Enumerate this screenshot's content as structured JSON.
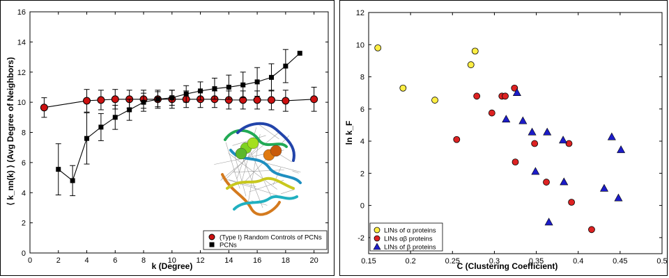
{
  "chart_data": [
    {
      "type": "line",
      "xlabel": "k (Degree)",
      "ylabel": "⟨ k_nn(k) ⟩ (Avg Degree of Neighbors)",
      "xlim": [
        0,
        21
      ],
      "ylim": [
        0,
        16
      ],
      "xticks": [
        0,
        2,
        4,
        6,
        8,
        10,
        12,
        14,
        16,
        18,
        20
      ],
      "yticks": [
        0,
        2,
        4,
        6,
        8,
        10,
        12,
        14,
        16
      ],
      "legend_position": "bottom-right",
      "inset": "protein-contact-network-structure-image",
      "series": [
        {
          "name": "(Type I) Random Controls of PCNs",
          "marker": "circle",
          "color": "#cc1111",
          "x": [
            1,
            4,
            5,
            6,
            7,
            8,
            9,
            10,
            11,
            12,
            13,
            14,
            15,
            16,
            17,
            18,
            20
          ],
          "y": [
            9.65,
            10.1,
            10.15,
            10.2,
            10.2,
            10.2,
            10.2,
            10.2,
            10.2,
            10.2,
            10.2,
            10.15,
            10.15,
            10.15,
            10.15,
            10.1,
            10.2
          ],
          "err": [
            0.65,
            0.75,
            0.65,
            0.65,
            0.6,
            0.6,
            0.6,
            0.6,
            0.55,
            0.55,
            0.55,
            0.6,
            0.6,
            0.6,
            0.65,
            0.7,
            0.8
          ]
        },
        {
          "name": "PCNs",
          "marker": "square",
          "color": "#000000",
          "x": [
            2,
            3,
            4,
            5,
            6,
            7,
            8,
            9,
            10,
            11,
            12,
            13,
            14,
            15,
            16,
            17,
            18,
            19
          ],
          "y": [
            5.55,
            4.8,
            7.6,
            8.35,
            9.0,
            9.5,
            10.0,
            10.2,
            10.3,
            10.55,
            10.75,
            10.9,
            11.0,
            11.15,
            11.35,
            11.65,
            12.4,
            13.25
          ],
          "err": [
            1.7,
            1.0,
            1.7,
            0.9,
            0.8,
            0.7,
            0.6,
            0.5,
            0.5,
            0.55,
            0.6,
            0.7,
            0.8,
            0.85,
            0.95,
            0.9,
            1.1,
            0
          ]
        }
      ]
    },
    {
      "type": "scatter",
      "xlabel": "C (Clustering Coefficient)",
      "ylabel": "ln k_F",
      "xlim": [
        0.15,
        0.5
      ],
      "ylim": [
        -3,
        12
      ],
      "xticks": [
        0.15,
        0.2,
        0.25,
        0.3,
        0.35,
        0.4,
        0.45,
        0.5
      ],
      "yticks": [
        -2,
        0,
        2,
        4,
        6,
        8,
        10,
        12
      ],
      "legend_position": "bottom-left",
      "series": [
        {
          "name": "LINs of α proteins",
          "marker": "circle",
          "color": "#ffee44",
          "x": [
            0.161,
            0.191,
            0.229,
            0.272,
            0.277
          ],
          "y": [
            9.8,
            7.3,
            6.55,
            8.75,
            9.6
          ]
        },
        {
          "name": "LINs αβ proteins",
          "marker": "circle",
          "color": "#dd2222",
          "x": [
            0.255,
            0.279,
            0.297,
            0.309,
            0.313,
            0.324,
            0.325,
            0.348,
            0.362,
            0.389,
            0.392,
            0.416
          ],
          "y": [
            4.1,
            6.8,
            5.75,
            6.8,
            6.8,
            7.3,
            2.7,
            3.85,
            1.45,
            3.85,
            0.2,
            -1.5
          ]
        },
        {
          "name": "LINs of β proteins",
          "marker": "triangle",
          "color": "#1c1cc8",
          "x": [
            0.327,
            0.314,
            0.334,
            0.345,
            0.349,
            0.363,
            0.365,
            0.382,
            0.383,
            0.431,
            0.44,
            0.448,
            0.451
          ],
          "y": [
            7.0,
            5.35,
            5.25,
            4.55,
            2.1,
            4.55,
            -1.05,
            4.05,
            1.45,
            1.05,
            4.25,
            0.45,
            3.45
          ]
        }
      ]
    }
  ]
}
